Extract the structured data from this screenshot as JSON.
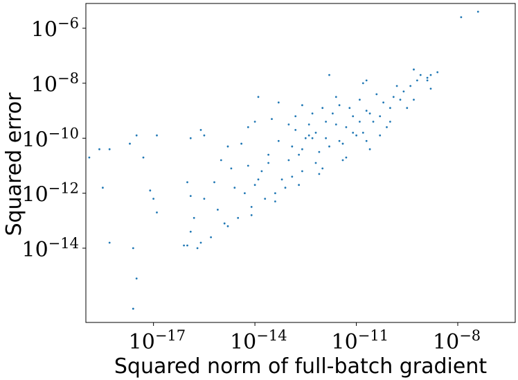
{
  "chart_data": {
    "type": "scatter",
    "title": "",
    "xlabel": "Squared norm of full-batch gradient",
    "ylabel": "Squared error",
    "xscale": "log",
    "yscale": "log",
    "xlim_exponent": [
      -19.0,
      -6.3
    ],
    "ylim_exponent": [
      -16.7,
      -5.1
    ],
    "x_ticks": [
      {
        "base": "10",
        "exp": "−17",
        "value_exponent": -17
      },
      {
        "base": "10",
        "exp": "−14",
        "value_exponent": -14
      },
      {
        "base": "10",
        "exp": "−11",
        "value_exponent": -11
      },
      {
        "base": "10",
        "exp": "−8",
        "value_exponent": -8
      }
    ],
    "y_ticks": [
      {
        "base": "10",
        "exp": "−6",
        "value_exponent": -6
      },
      {
        "base": "10",
        "exp": "−8",
        "value_exponent": -8
      },
      {
        "base": "10",
        "exp": "−10",
        "value_exponent": -10
      },
      {
        "base": "10",
        "exp": "−12",
        "value_exponent": -12
      },
      {
        "base": "10",
        "exp": "−14",
        "value_exponent": -14
      }
    ],
    "grid": false,
    "marker_color": "#1f77b4",
    "points_log10": [
      [
        -7.4,
        -5.4
      ],
      [
        -7.9,
        -5.6
      ],
      [
        -8.9,
        -7.9
      ],
      [
        -8.6,
        -7.6
      ],
      [
        -8.8,
        -7.7
      ],
      [
        -9.3,
        -7.5
      ],
      [
        -10.7,
        -7.9
      ],
      [
        -11.8,
        -7.7
      ],
      [
        -13.3,
        -8.7
      ],
      [
        -15.9,
        -10.0
      ],
      [
        -16.9,
        -9.9
      ],
      [
        -17.5,
        -9.9
      ],
      [
        -17.7,
        -10.2
      ],
      [
        -18.3,
        -10.4
      ],
      [
        -18.6,
        -10.4
      ],
      [
        -17.3,
        -10.7
      ],
      [
        -18.9,
        -10.7
      ],
      [
        -18.5,
        -11.8
      ],
      [
        -17.1,
        -11.9
      ],
      [
        -17.0,
        -12.2
      ],
      [
        -16.0,
        -11.6
      ],
      [
        -15.9,
        -12.1
      ],
      [
        -15.0,
        -10.8
      ],
      [
        -15.6,
        -9.7
      ],
      [
        -15.5,
        -9.9
      ],
      [
        -16.9,
        -12.7
      ],
      [
        -15.8,
        -12.9
      ],
      [
        -18.3,
        -13.8
      ],
      [
        -17.6,
        -14.0
      ],
      [
        -17.5,
        -15.1
      ],
      [
        -17.6,
        -16.2
      ],
      [
        -14.8,
        -10.3
      ],
      [
        -14.4,
        -10.2
      ],
      [
        -14.2,
        -9.6
      ],
      [
        -14.0,
        -9.4
      ],
      [
        -13.9,
        -8.5
      ],
      [
        -12.8,
        -9.2
      ],
      [
        -12.6,
        -8.8
      ],
      [
        -12.0,
        -8.9
      ],
      [
        -13.4,
        -12.0
      ],
      [
        -13.2,
        -11.5
      ],
      [
        -14.6,
        -11.8
      ],
      [
        -14.7,
        -11.1
      ],
      [
        -15.2,
        -11.6
      ],
      [
        -15.5,
        -12.2
      ],
      [
        -13.8,
        -11.2
      ],
      [
        -13.6,
        -10.9
      ],
      [
        -12.9,
        -10.3
      ],
      [
        -12.7,
        -10.6
      ],
      [
        -13.0,
        -10.8
      ],
      [
        -12.3,
        -10.0
      ],
      [
        -12.4,
        -9.9
      ],
      [
        -12.5,
        -10.0
      ],
      [
        -11.9,
        -10.0
      ],
      [
        -11.6,
        -9.5
      ],
      [
        -11.1,
        -9.2
      ],
      [
        -10.6,
        -9.1
      ],
      [
        -10.2,
        -8.7
      ],
      [
        -9.9,
        -8.5
      ],
      [
        -9.6,
        -8.3
      ],
      [
        -9.2,
        -7.9
      ],
      [
        -9.4,
        -8.1
      ],
      [
        -10.9,
        -9.4
      ],
      [
        -11.3,
        -9.6
      ],
      [
        -10.8,
        -9.8
      ],
      [
        -11.4,
        -10.2
      ],
      [
        -12.1,
        -10.5
      ],
      [
        -11.8,
        -10.3
      ],
      [
        -10.5,
        -9.4
      ],
      [
        -10.0,
        -8.9
      ],
      [
        -9.7,
        -8.6
      ],
      [
        -9.5,
        -8.9
      ],
      [
        -10.3,
        -9.2
      ],
      [
        -11.0,
        -9.9
      ],
      [
        -11.5,
        -10.1
      ],
      [
        -12.2,
        -10.9
      ],
      [
        -12.6,
        -11.2
      ],
      [
        -13.1,
        -11.8
      ],
      [
        -13.7,
        -12.2
      ],
      [
        -14.1,
        -12.5
      ],
      [
        -14.5,
        -12.9
      ],
      [
        -14.9,
        -13.1
      ],
      [
        -15.3,
        -13.6
      ],
      [
        -15.7,
        -14.0
      ],
      [
        -16.1,
        -13.9
      ],
      [
        -13.3,
        -10.1
      ],
      [
        -12.8,
        -9.7
      ],
      [
        -11.2,
        -8.9
      ],
      [
        -10.4,
        -8.4
      ],
      [
        -9.1,
        -7.7
      ],
      [
        -11.7,
        -9.1
      ],
      [
        -10.1,
        -9.6
      ],
      [
        -11.9,
        -9.4
      ],
      [
        -12.4,
        -9.5
      ],
      [
        -13.5,
        -9.3
      ],
      [
        -10.6,
        -10.4
      ],
      [
        -11.3,
        -10.7
      ],
      [
        -12.0,
        -11.1
      ],
      [
        -12.9,
        -11.4
      ],
      [
        -14.3,
        -12.0
      ],
      [
        -14.0,
        -11.7
      ],
      [
        -10.9,
        -8.6
      ],
      [
        -11.5,
        -8.8
      ],
      [
        -9.8,
        -8.1
      ],
      [
        -8.8,
        -8.2
      ],
      [
        -10.7,
        -9.0
      ],
      [
        -12.2,
        -9.8
      ],
      [
        -13.0,
        -9.5
      ],
      [
        -14.2,
        -11.0
      ],
      [
        -15.1,
        -12.6
      ],
      [
        -15.9,
        -13.4
      ],
      [
        -16.0,
        -13.9
      ],
      [
        -11.6,
        -8.5
      ],
      [
        -10.8,
        -8.0
      ],
      [
        -12.3,
        -9.1
      ],
      [
        -11.1,
        -9.8
      ],
      [
        -10.3,
        -9.9
      ],
      [
        -12.6,
        -10.4
      ],
      [
        -13.6,
        -10.6
      ],
      [
        -13.9,
        -11.5
      ],
      [
        -15.6,
        -13.8
      ],
      [
        -14.8,
        -13.2
      ],
      [
        -14.1,
        -12.8
      ],
      [
        -13.4,
        -12.3
      ],
      [
        -12.7,
        -11.7
      ],
      [
        -12.1,
        -11.3
      ],
      [
        -11.4,
        -10.8
      ],
      [
        -10.7,
        -10.1
      ],
      [
        -10.0,
        -9.4
      ],
      [
        -9.3,
        -8.6
      ],
      [
        -8.9,
        -7.8
      ]
    ]
  }
}
